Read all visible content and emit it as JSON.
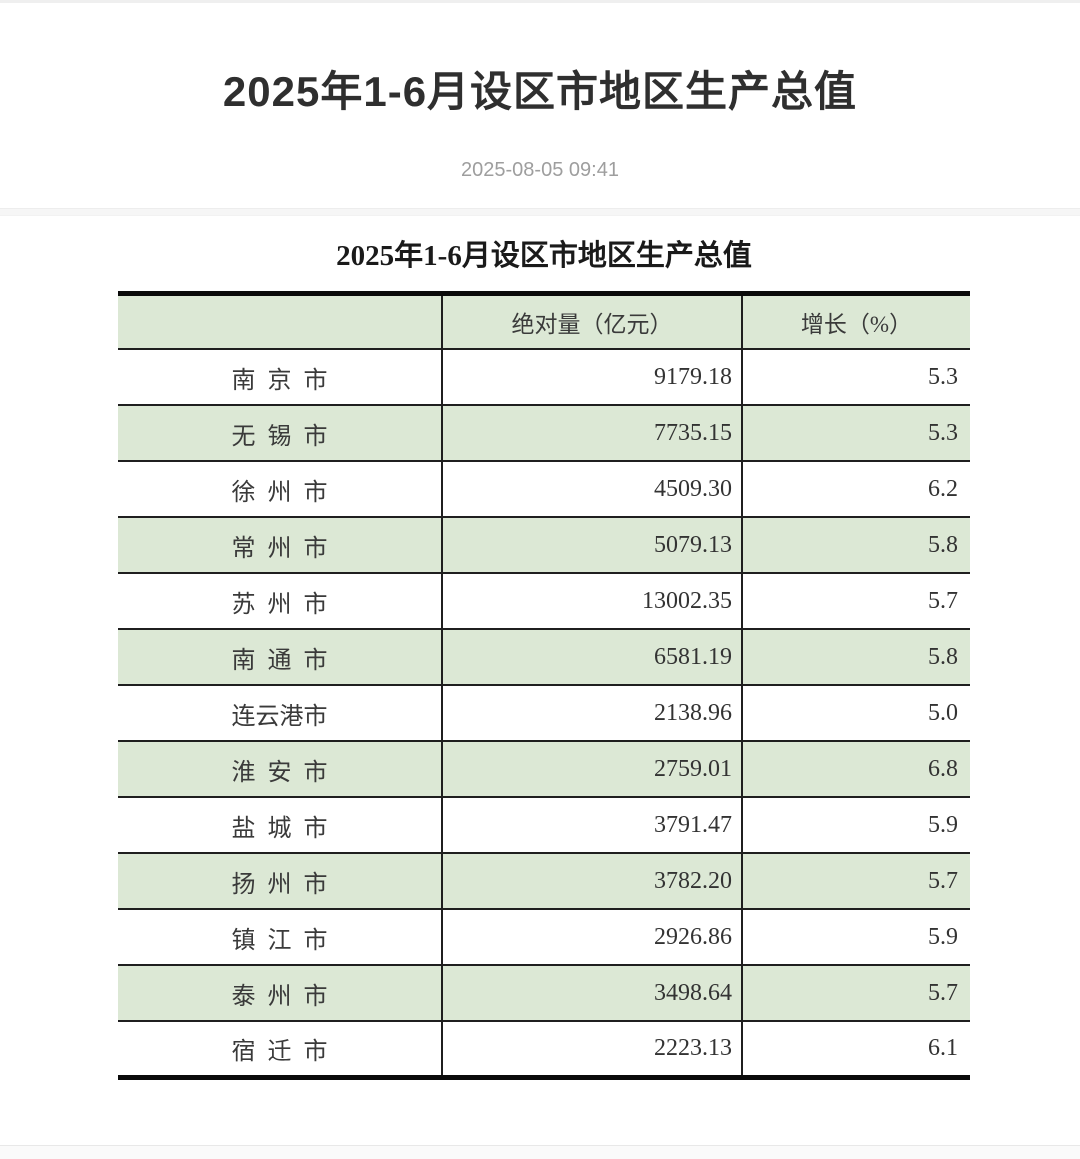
{
  "page": {
    "title": "2025年1-6月设区市地区生产总值",
    "publish_date": "2025-08-05 09:41"
  },
  "table": {
    "caption": "2025年1-6月设区市地区生产总值",
    "columns": {
      "city": "",
      "absolute": "绝对量（亿元）",
      "growth": "增长（%）"
    },
    "rows": [
      {
        "city": "南京市",
        "absolute": "9179.18",
        "growth": "5.3"
      },
      {
        "city": "无锡市",
        "absolute": "7735.15",
        "growth": "5.3"
      },
      {
        "city": "徐州市",
        "absolute": "4509.30",
        "growth": "6.2"
      },
      {
        "city": "常州市",
        "absolute": "5079.13",
        "growth": "5.8"
      },
      {
        "city": "苏州市",
        "absolute": "13002.35",
        "growth": "5.7"
      },
      {
        "city": "南通市",
        "absolute": "6581.19",
        "growth": "5.8"
      },
      {
        "city": "连云港市",
        "absolute": "2138.96",
        "growth": "5.0"
      },
      {
        "city": "淮安市",
        "absolute": "2759.01",
        "growth": "6.8"
      },
      {
        "city": "盐城市",
        "absolute": "3791.47",
        "growth": "5.9"
      },
      {
        "city": "扬州市",
        "absolute": "3782.20",
        "growth": "5.7"
      },
      {
        "city": "镇江市",
        "absolute": "2926.86",
        "growth": "5.9"
      },
      {
        "city": "泰州市",
        "absolute": "3498.64",
        "growth": "5.7"
      },
      {
        "city": "宿迁市",
        "absolute": "2223.13",
        "growth": "6.1"
      }
    ]
  },
  "colors": {
    "row_green": "#dce8d5",
    "border_black": "#0a0a0a",
    "inner_border": "#1f1f1f",
    "title_color": "#2f2f2f",
    "table_text": "#3a3a3a",
    "date_gray": "#9e9e9e",
    "divider_gray": "#f6f6f6"
  }
}
